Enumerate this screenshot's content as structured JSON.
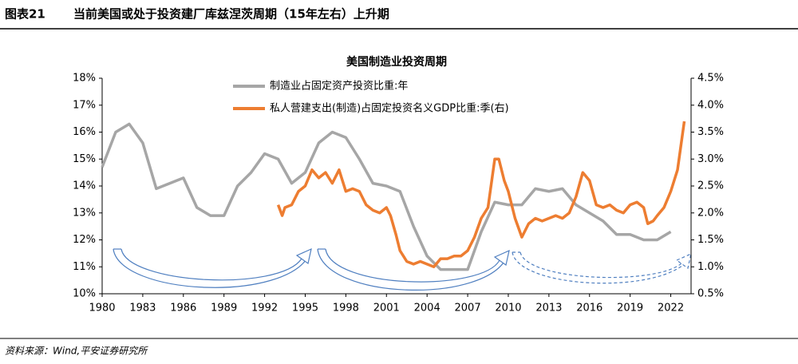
{
  "header": {
    "label": "图表21",
    "title": "当前美国或处于投资建厂库兹涅茨周期（15年左右）上升期"
  },
  "source": "资料来源：Wind,平安证券研究所",
  "chart_data": {
    "type": "line",
    "title": "美国制造业投资周期",
    "xlim": [
      1980,
      2023.5
    ],
    "xticks": [
      1980,
      1983,
      1986,
      1989,
      1992,
      1995,
      1998,
      2001,
      2004,
      2007,
      2010,
      2013,
      2016,
      2019,
      2022
    ],
    "ylim": [
      10,
      18
    ],
    "yticks": [
      {
        "value": 10,
        "label": "10%"
      },
      {
        "value": 11,
        "label": "11%"
      },
      {
        "value": 12,
        "label": "12%"
      },
      {
        "value": 13,
        "label": "13%"
      },
      {
        "value": 14,
        "label": "14%"
      },
      {
        "value": 15,
        "label": "15%"
      },
      {
        "value": 16,
        "label": "16%"
      },
      {
        "value": 17,
        "label": "17%"
      },
      {
        "value": 18,
        "label": "18%"
      }
    ],
    "y2lim": [
      0.5,
      4.5
    ],
    "y2ticks": [
      {
        "value": 0.5,
        "label": "0.5%"
      },
      {
        "value": 1.0,
        "label": "1.0%"
      },
      {
        "value": 1.5,
        "label": "1.5%"
      },
      {
        "value": 2.0,
        "label": "2.0%"
      },
      {
        "value": 2.5,
        "label": "2.5%"
      },
      {
        "value": 3.0,
        "label": "3.0%"
      },
      {
        "value": 3.5,
        "label": "3.5%"
      },
      {
        "value": 4.0,
        "label": "4.0%"
      },
      {
        "value": 4.5,
        "label": "4.5%"
      }
    ],
    "series": [
      {
        "name": "制造业占固定资产投资比重:年",
        "color": "#a6a6a6",
        "axis": "y",
        "x": [
          1980,
          1981,
          1982,
          1983,
          1984,
          1985,
          1986,
          1987,
          1988,
          1989,
          1990,
          1991,
          1992,
          1993,
          1994,
          1995,
          1996,
          1997,
          1998,
          1999,
          2000,
          2001,
          2002,
          2003,
          2004,
          2005,
          2006,
          2007,
          2008,
          2009,
          2010,
          2011,
          2012,
          2013,
          2014,
          2015,
          2016,
          2017,
          2018,
          2019,
          2020,
          2021,
          2022
        ],
        "values": [
          14.7,
          16.0,
          16.3,
          15.6,
          13.9,
          14.1,
          14.3,
          13.2,
          12.9,
          12.9,
          14.0,
          14.5,
          15.2,
          15.0,
          14.1,
          14.5,
          15.6,
          16.0,
          15.8,
          15.0,
          14.1,
          14.0,
          13.8,
          12.5,
          11.4,
          10.9,
          10.9,
          10.9,
          12.3,
          13.4,
          13.3,
          13.3,
          13.9,
          13.8,
          13.9,
          13.3,
          13.0,
          12.7,
          12.2,
          12.2,
          12.0,
          12.0,
          12.3
        ]
      },
      {
        "name": "私人营建支出(制造)占固定投资名义GDP比重:季(右)",
        "color": "#ed7d31",
        "axis": "y2",
        "x": [
          1993,
          1993.3,
          1993.5,
          1994,
          1994.5,
          1995,
          1995.5,
          1996,
          1996.5,
          1997,
          1997.5,
          1998,
          1998.5,
          1999,
          1999.5,
          2000,
          2000.5,
          2001,
          2001.3,
          2001.7,
          2002,
          2002.5,
          2003,
          2003.5,
          2004,
          2004.5,
          2005,
          2005.5,
          2006,
          2006.5,
          2007,
          2007.5,
          2008,
          2008.5,
          2009,
          2009.3,
          2009.7,
          2010,
          2010.5,
          2011,
          2011.5,
          2012,
          2012.5,
          2013,
          2013.5,
          2014,
          2014.5,
          2015,
          2015.5,
          2016,
          2016.5,
          2017,
          2017.5,
          2018,
          2018.5,
          2019,
          2019.5,
          2020,
          2020.3,
          2020.7,
          2021,
          2021.5,
          2022,
          2022.5,
          2023
        ],
        "values": [
          2.15,
          1.95,
          2.1,
          2.15,
          2.4,
          2.5,
          2.8,
          2.65,
          2.75,
          2.55,
          2.8,
          2.4,
          2.45,
          2.4,
          2.15,
          2.05,
          2.0,
          2.1,
          1.95,
          1.6,
          1.3,
          1.1,
          1.05,
          1.1,
          1.05,
          1.0,
          1.15,
          1.15,
          1.2,
          1.2,
          1.3,
          1.55,
          1.9,
          2.1,
          3.0,
          3.0,
          2.6,
          2.4,
          1.9,
          1.55,
          1.8,
          1.9,
          1.85,
          1.9,
          1.95,
          1.9,
          2.0,
          2.3,
          2.75,
          2.6,
          2.15,
          2.1,
          2.15,
          2.05,
          2.0,
          2.15,
          2.2,
          2.1,
          1.8,
          1.85,
          1.95,
          2.1,
          2.4,
          2.8,
          3.7
        ]
      }
    ]
  }
}
